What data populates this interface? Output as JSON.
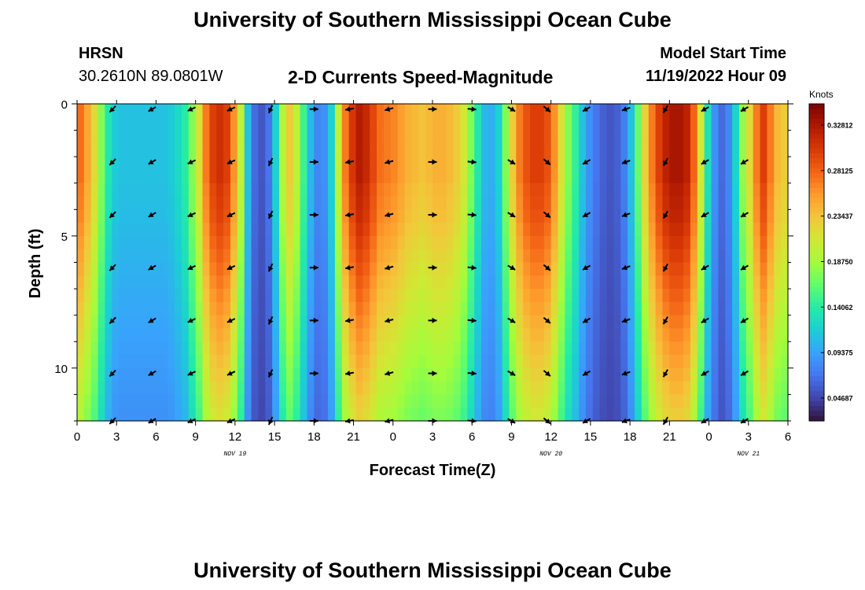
{
  "header": {
    "title": "University of Southern Mississippi Ocean Cube",
    "station": "HRSN",
    "coords": "30.2610N  89.0801W",
    "chart_title": "2-D Currents Speed-Magnitude",
    "model_label": "Model Start Time",
    "model_time": "11/19/2022 Hour 09",
    "footer_title": "University of Southern Mississippi Ocean Cube"
  },
  "colors": {
    "colormap": [
      "#30123b",
      "#4145ab",
      "#4675ed",
      "#39a2fc",
      "#1bcfd4",
      "#24eca6",
      "#61fc6c",
      "#a4fc3b",
      "#d1e834",
      "#f3c63a",
      "#fe9b2d",
      "#f36315",
      "#d93806",
      "#b11901",
      "#7a0402"
    ],
    "arrow": "#000000"
  },
  "chart_data": {
    "type": "heatmap",
    "title": "2-D Currents Speed-Magnitude",
    "xlabel": "Forecast Time(Z)",
    "ylabel": "Depth (ft)",
    "x_tick_labels": [
      "0",
      "3",
      "6",
      "9",
      "12",
      "15",
      "18",
      "21",
      "0",
      "3",
      "6",
      "9",
      "12",
      "15",
      "18",
      "21",
      "0",
      "3",
      "6"
    ],
    "x_range_hours": [
      0,
      54
    ],
    "date_labels": [
      {
        "hour": 12,
        "label": "NOV 19"
      },
      {
        "hour": 36,
        "label": "NOV 20"
      },
      {
        "hour": 51,
        "label": "NOV 21"
      }
    ],
    "y_ticks": [
      0,
      5,
      10
    ],
    "y_range": [
      0,
      12
    ],
    "colorbar": {
      "label": "Knots",
      "min": 0.0234,
      "max": 0.35,
      "ticks": [
        "0.32812",
        "0.28125",
        "0.23437",
        "0.18750",
        "0.14062",
        "0.09375",
        "0.04687"
      ],
      "tick_values": [
        0.32812,
        0.28125,
        0.23437,
        0.1875,
        0.14062,
        0.09375,
        0.04687
      ]
    },
    "speed_profile_knots": [
      0.275,
      0.25,
      0.22,
      0.175,
      0.135,
      0.115,
      0.11,
      0.11,
      0.11,
      0.11,
      0.11,
      0.11,
      0.11,
      0.115,
      0.125,
      0.14,
      0.175,
      0.215,
      0.27,
      0.3,
      0.31,
      0.3,
      0.26,
      0.2,
      0.11,
      0.065,
      0.055,
      0.07,
      0.12,
      0.195,
      0.23,
      0.2,
      0.15,
      0.105,
      0.08,
      0.085,
      0.12,
      0.2,
      0.27,
      0.305,
      0.325,
      0.315,
      0.295,
      0.275,
      0.27,
      0.265,
      0.255,
      0.245,
      0.24,
      0.235,
      0.24,
      0.245,
      0.245,
      0.24,
      0.23,
      0.21,
      0.175,
      0.135,
      0.105,
      0.1,
      0.12,
      0.175,
      0.23,
      0.27,
      0.29,
      0.3,
      0.3,
      0.29,
      0.26,
      0.215,
      0.175,
      0.145,
      0.11,
      0.085,
      0.07,
      0.06,
      0.055,
      0.06,
      0.075,
      0.11,
      0.165,
      0.225,
      0.27,
      0.3,
      0.32,
      0.33,
      0.33,
      0.32,
      0.28,
      0.21,
      0.13,
      0.085,
      0.065,
      0.08,
      0.12,
      0.18,
      0.22,
      0.27,
      0.3,
      0.27,
      0.24,
      0.23
    ],
    "depth_factor": [
      1.0,
      1.0,
      1.0,
      1.0,
      1.0,
      1.0,
      0.98,
      0.97,
      0.96,
      0.94,
      0.92,
      0.9,
      0.88,
      0.86,
      0.84,
      0.82,
      0.8,
      0.78,
      0.76,
      0.74,
      0.72,
      0.7,
      0.68,
      0.66
    ],
    "arrow_hours": [
      2.7,
      5.7,
      8.7,
      11.7,
      14.7,
      18.0,
      20.7,
      23.7,
      27.0,
      30.0,
      33.0,
      35.7,
      38.7,
      41.7,
      44.7,
      47.7,
      50.7
    ],
    "arrow_directions_deg": [
      -135,
      -150,
      -155,
      -155,
      -115,
      0,
      -170,
      -165,
      0,
      -5,
      -30,
      -40,
      -150,
      -160,
      -120,
      -150,
      -150
    ],
    "arrow_depths_ft": [
      0.2,
      2.2,
      4.2,
      6.2,
      8.2,
      10.2,
      12.0
    ]
  }
}
